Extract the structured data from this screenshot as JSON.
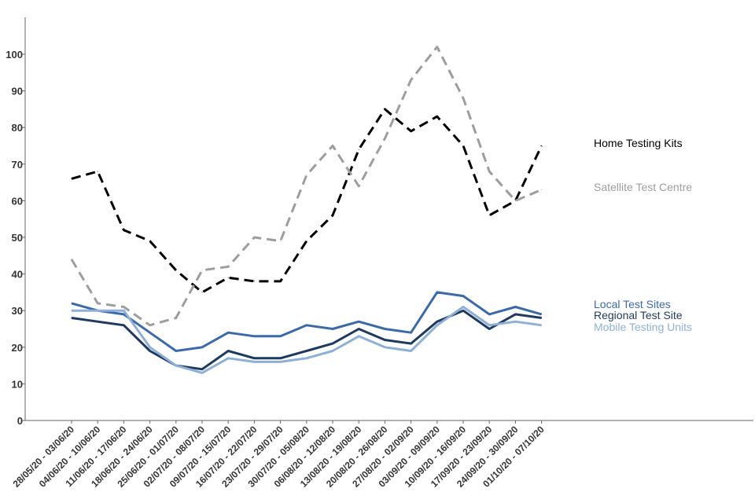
{
  "chart_data": {
    "type": "line",
    "title": "",
    "xlabel": "",
    "ylabel": "",
    "ylim": [
      0,
      110
    ],
    "yticks": [
      "0",
      "10",
      "20",
      "30",
      "40",
      "50",
      "60",
      "70",
      "80",
      "90",
      "100"
    ],
    "categories": [
      "28/05/20 - 03/06/20",
      "04/06/20 - 10/06/20",
      "11/06/20 - 17/06/20",
      "18/06/20 - 24/06/20",
      "25/06/20 - 01/07/20",
      "02/07/20 - 08/07/20",
      "09/07/20 - 15/07/20",
      "16/07/20 - 22/07/20",
      "23/07/20 - 29/07/20",
      "30/07/20 - 05/08/20",
      "06/08/20 - 12/08/20",
      "13/08/20 - 19/08/20",
      "20/08/20 - 26/08/20",
      "27/08/20 - 02/09/20",
      "03/09/20 - 09/09/20",
      "10/09/20 - 16/09/20",
      "17/09/20 - 23/09/20",
      "24/09/20 - 30/09/20",
      "01/10/20 - 07/10/20"
    ],
    "series": [
      {
        "name": "Home Testing Kits",
        "color": "#000000",
        "dashed": true,
        "values": [
          66,
          68,
          52,
          49,
          41,
          35,
          39,
          38,
          38,
          49,
          56,
          74,
          85,
          79,
          83,
          75,
          56,
          60,
          75
        ]
      },
      {
        "name": "Satellite Test Centre",
        "color": "#9e9e9e",
        "dashed": true,
        "values": [
          44,
          32,
          31,
          26,
          28,
          41,
          42,
          50,
          49,
          67,
          75,
          64,
          77,
          93,
          102,
          88,
          68,
          60,
          63
        ]
      },
      {
        "name": "Local Test Sites",
        "color": "#3b6aa9",
        "dashed": false,
        "values": [
          32,
          30,
          29,
          24,
          19,
          20,
          24,
          23,
          23,
          26,
          25,
          27,
          25,
          24,
          35,
          34,
          29,
          31,
          29
        ]
      },
      {
        "name": "Regional Test Site",
        "color": "#1f3a5f",
        "dashed": false,
        "values": [
          28,
          27,
          26,
          19,
          15,
          14,
          19,
          17,
          17,
          19,
          21,
          25,
          22,
          21,
          27,
          30,
          25,
          29,
          28
        ]
      },
      {
        "name": "Mobile Testing Units",
        "color": "#8fb0d6",
        "dashed": false,
        "values": [
          30,
          30,
          30,
          20,
          15,
          13,
          17,
          16,
          16,
          17,
          19,
          23,
          20,
          19,
          26,
          31,
          26,
          27,
          26
        ]
      }
    ]
  }
}
